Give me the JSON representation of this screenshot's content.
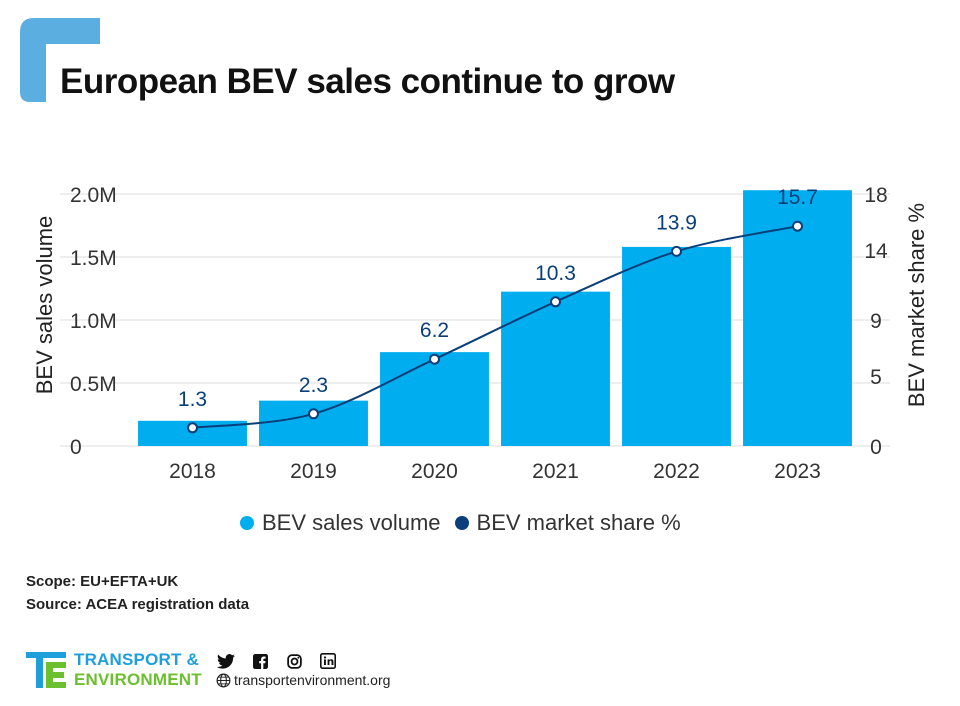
{
  "title": "European BEV sales continue to grow",
  "chart_data": {
    "type": "bar",
    "categories": [
      "2018",
      "2019",
      "2020",
      "2021",
      "2022",
      "2023"
    ],
    "series": [
      {
        "name": "BEV sales volume",
        "type": "bar",
        "axis": "left",
        "values": [
          200000,
          360000,
          745000,
          1225000,
          1580000,
          2030000
        ],
        "color": "#00aeef"
      },
      {
        "name": "BEV market share %",
        "type": "line",
        "axis": "right",
        "values": [
          1.3,
          2.3,
          6.2,
          10.3,
          13.9,
          15.7
        ],
        "data_labels": [
          "1.3",
          "2.3",
          "6.2",
          "10.3",
          "13.9",
          "15.7"
        ],
        "color": "#0b3f7a"
      }
    ],
    "ylabel": "BEV sales volume",
    "y2label": "BEV market share %",
    "ylim": [
      0,
      2000000
    ],
    "y2lim": [
      0,
      18
    ],
    "yticks": [
      0,
      500000,
      1000000,
      1500000,
      2000000
    ],
    "ytick_labels": [
      "0",
      "0.5M",
      "1.0M",
      "1.5M",
      "2.0M"
    ],
    "y2ticks": [
      0,
      5,
      9,
      14,
      18
    ],
    "y2tick_labels": [
      "0",
      "5",
      "9",
      "14",
      "18"
    ],
    "grid": true,
    "legend_position": "bottom"
  },
  "legend": [
    {
      "label": "BEV sales volume",
      "color": "#00aeef"
    },
    {
      "label": "BEV market share %",
      "color": "#0b3f7a"
    }
  ],
  "notes": {
    "scope": "Scope: EU+EFTA+UK",
    "source": "Source: ACEA registration data"
  },
  "footer": {
    "brand_line1": "TRANSPORT &",
    "brand_line2": "ENVIRONMENT",
    "website": "transportenvironment.org",
    "social_icons": [
      "twitter-icon",
      "facebook-icon",
      "instagram-icon",
      "linkedin-icon"
    ]
  },
  "colors": {
    "accent_corner": "#5aaee0",
    "bar": "#00aeef",
    "line": "#0b3f7a",
    "brand_blue": "#1e9fdc",
    "brand_green": "#6cbf2f"
  }
}
